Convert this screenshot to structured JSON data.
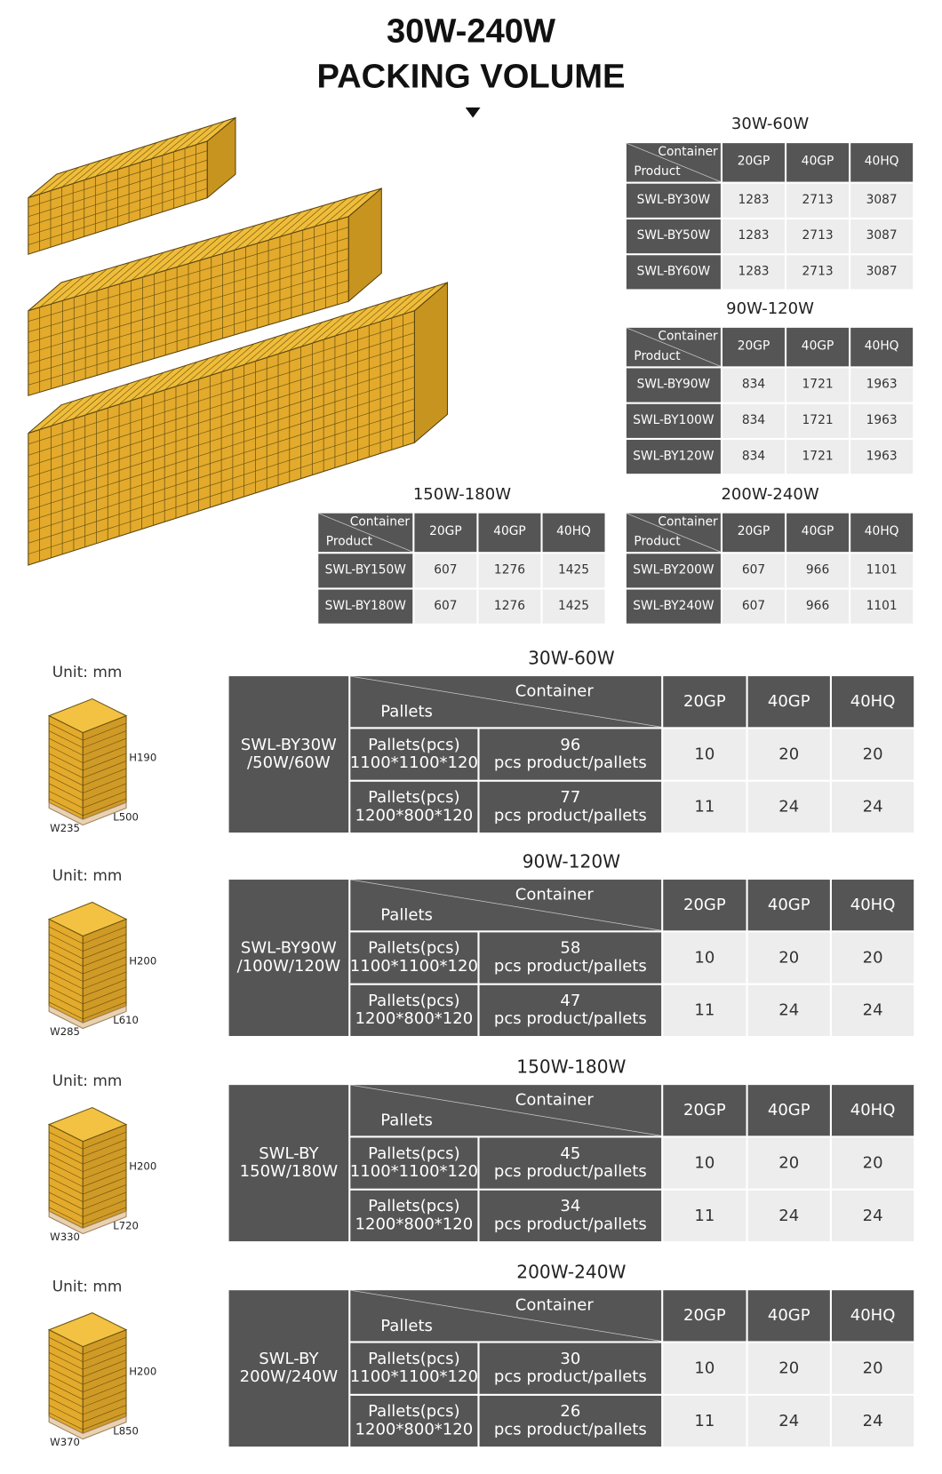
{
  "header": {
    "title_line1": "30W-240W",
    "title_line2": "PACKING VOLUME"
  },
  "container_tables": [
    {
      "title": "30W-60W",
      "container": "Container",
      "product": "Product",
      "cols": [
        "20GP",
        "40GP",
        "40HQ"
      ],
      "rows": [
        [
          "SWL-BY30W",
          1283,
          2713,
          3087
        ],
        [
          "SWL-BY50W",
          1283,
          2713,
          3087
        ],
        [
          "SWL-BY60W",
          1283,
          2713,
          3087
        ]
      ]
    },
    {
      "title": "90W-120W",
      "container": "Container",
      "product": "Product",
      "cols": [
        "20GP",
        "40GP",
        "40HQ"
      ],
      "rows": [
        [
          "SWL-BY90W",
          834,
          1721,
          1963
        ],
        [
          "SWL-BY100W",
          834,
          1721,
          1963
        ],
        [
          "SWL-BY120W",
          834,
          1721,
          1963
        ]
      ]
    },
    {
      "title": "150W-180W",
      "container": "Container",
      "product": "Product",
      "cols": [
        "20GP",
        "40GP",
        "40HQ"
      ],
      "rows": [
        [
          "SWL-BY150W",
          607,
          1276,
          1425
        ],
        [
          "SWL-BY180W",
          607,
          1276,
          1425
        ]
      ]
    },
    {
      "title": "200W-240W",
      "container": "Container",
      "product": "Product",
      "cols": [
        "20GP",
        "40GP",
        "40HQ"
      ],
      "rows": [
        [
          "SWL-BY200W",
          607,
          966,
          1101
        ],
        [
          "SWL-BY240W",
          607,
          966,
          1101
        ]
      ]
    }
  ],
  "pallet_sections": [
    {
      "unit": "Unit: mm",
      "h": "H190",
      "l": "L500",
      "w": "W235",
      "title": "30W-60W",
      "model": "SWL-BY30W\n/50W/60W",
      "pallets": "Pallets",
      "container": "Container",
      "cols": [
        "20GP",
        "40GP",
        "40HQ"
      ],
      "rows": [
        {
          "pallet": "Pallets(pcs)\n1100*1100*120",
          "qty": "96\npcs product/pallets",
          "values": [
            10,
            20,
            20
          ]
        },
        {
          "pallet": "Pallets(pcs)\n1200*800*120",
          "qty": "77\npcs product/pallets",
          "values": [
            11,
            24,
            24
          ]
        }
      ]
    },
    {
      "unit": "Unit: mm",
      "h": "H200",
      "l": "L610",
      "w": "W285",
      "title": "90W-120W",
      "model": "SWL-BY90W\n/100W/120W",
      "pallets": "Pallets",
      "container": "Container",
      "cols": [
        "20GP",
        "40GP",
        "40HQ"
      ],
      "rows": [
        {
          "pallet": "Pallets(pcs)\n1100*1100*120",
          "qty": "58\npcs product/pallets",
          "values": [
            10,
            20,
            20
          ]
        },
        {
          "pallet": "Pallets(pcs)\n1200*800*120",
          "qty": "47\npcs product/pallets",
          "values": [
            11,
            24,
            24
          ]
        }
      ]
    },
    {
      "unit": "Unit: mm",
      "h": "H200",
      "l": "L720",
      "w": "W330",
      "title": "150W-180W",
      "model": "SWL-BY\n150W/180W",
      "pallets": "Pallets",
      "container": "Container",
      "cols": [
        "20GP",
        "40GP",
        "40HQ"
      ],
      "rows": [
        {
          "pallet": "Pallets(pcs)\n1100*1100*120",
          "qty": "45\npcs product/pallets",
          "values": [
            10,
            20,
            20
          ]
        },
        {
          "pallet": "Pallets(pcs)\n1200*800*120",
          "qty": "34\npcs product/pallets",
          "values": [
            11,
            24,
            24
          ]
        }
      ]
    },
    {
      "unit": "Unit: mm",
      "h": "H200",
      "l": "L850",
      "w": "W370",
      "title": "200W-240W",
      "model": "SWL-BY\n200W/240W",
      "pallets": "Pallets",
      "container": "Container",
      "cols": [
        "20GP",
        "40GP",
        "40HQ"
      ],
      "rows": [
        {
          "pallet": "Pallets(pcs)\n1100*1100*120",
          "qty": "30\npcs product/pallets",
          "values": [
            10,
            20,
            20
          ]
        },
        {
          "pallet": "Pallets(pcs)\n1200*800*120",
          "qty": "26\npcs product/pallets",
          "values": [
            11,
            24,
            24
          ]
        }
      ]
    }
  ]
}
